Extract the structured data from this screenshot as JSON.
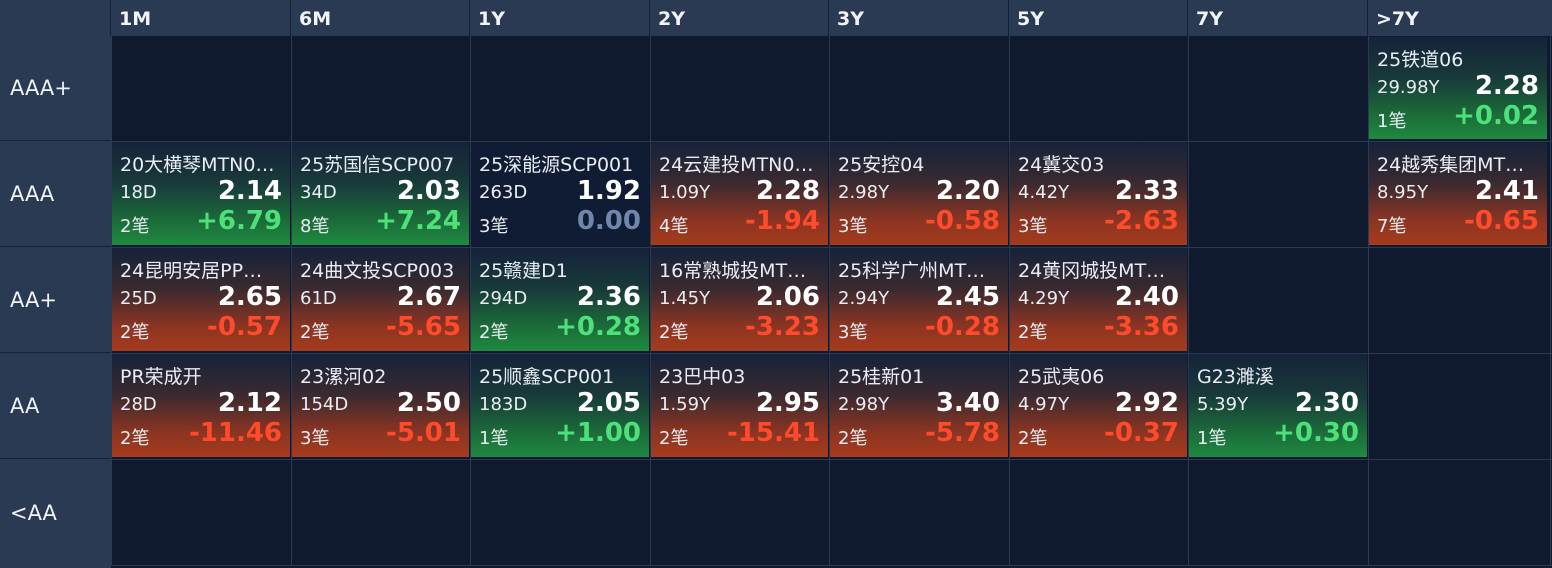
{
  "columns": [
    "1M",
    "6M",
    "1Y",
    "2Y",
    "3Y",
    "5Y",
    "7Y",
    ">7Y"
  ],
  "rows": [
    "AAA+",
    "AAA",
    "AA+",
    "AA",
    "<AA"
  ],
  "cells": {
    "aaa_plus_gt7y": {
      "name": "25铁道06",
      "tenor": "29.98Y",
      "yield": "2.28",
      "count": "1笔",
      "change": "+0.02",
      "trend": "up"
    },
    "aaa_1m": {
      "name": "20大横琴MTN0…",
      "tenor": "18D",
      "yield": "2.14",
      "count": "2笔",
      "change": "+6.79",
      "trend": "up"
    },
    "aaa_6m": {
      "name": "25苏国信SCP007",
      "tenor": "34D",
      "yield": "2.03",
      "count": "8笔",
      "change": "+7.24",
      "trend": "up"
    },
    "aaa_1y": {
      "name": "25深能源SCP001",
      "tenor": "263D",
      "yield": "1.92",
      "count": "3笔",
      "change": "0.00",
      "trend": "flat"
    },
    "aaa_2y": {
      "name": "24云建投MTN0…",
      "tenor": "1.09Y",
      "yield": "2.28",
      "count": "4笔",
      "change": "-1.94",
      "trend": "down"
    },
    "aaa_3y": {
      "name": "25安控04",
      "tenor": "2.98Y",
      "yield": "2.20",
      "count": "3笔",
      "change": "-0.58",
      "trend": "down"
    },
    "aaa_5y": {
      "name": "24冀交03",
      "tenor": "4.42Y",
      "yield": "2.33",
      "count": "3笔",
      "change": "-2.63",
      "trend": "down"
    },
    "aaa_gt7y": {
      "name": "24越秀集团MT…",
      "tenor": "8.95Y",
      "yield": "2.41",
      "count": "7笔",
      "change": "-0.65",
      "trend": "down"
    },
    "aap_1m": {
      "name": "24昆明安居PP…",
      "tenor": "25D",
      "yield": "2.65",
      "count": "2笔",
      "change": "-0.57",
      "trend": "down"
    },
    "aap_6m": {
      "name": "24曲文投SCP003",
      "tenor": "61D",
      "yield": "2.67",
      "count": "2笔",
      "change": "-5.65",
      "trend": "down"
    },
    "aap_1y": {
      "name": "25赣建D1",
      "tenor": "294D",
      "yield": "2.36",
      "count": "2笔",
      "change": "+0.28",
      "trend": "up"
    },
    "aap_2y": {
      "name": "16常熟城投MT…",
      "tenor": "1.45Y",
      "yield": "2.06",
      "count": "2笔",
      "change": "-3.23",
      "trend": "down"
    },
    "aap_3y": {
      "name": "25科学广州MT…",
      "tenor": "2.94Y",
      "yield": "2.45",
      "count": "3笔",
      "change": "-0.28",
      "trend": "down"
    },
    "aap_5y": {
      "name": "24黄冈城投MT…",
      "tenor": "4.29Y",
      "yield": "2.40",
      "count": "2笔",
      "change": "-3.36",
      "trend": "down"
    },
    "aa_1m": {
      "name": "PR荣成开",
      "tenor": "28D",
      "yield": "2.12",
      "count": "2笔",
      "change": "-11.46",
      "trend": "down"
    },
    "aa_6m": {
      "name": "23漯河02",
      "tenor": "154D",
      "yield": "2.50",
      "count": "3笔",
      "change": "-5.01",
      "trend": "down"
    },
    "aa_1y": {
      "name": "25顺鑫SCP001",
      "tenor": "183D",
      "yield": "2.05",
      "count": "1笔",
      "change": "+1.00",
      "trend": "up"
    },
    "aa_2y": {
      "name": "23巴中03",
      "tenor": "1.59Y",
      "yield": "2.95",
      "count": "2笔",
      "change": "-15.41",
      "trend": "down"
    },
    "aa_3y": {
      "name": "25桂新01",
      "tenor": "2.98Y",
      "yield": "3.40",
      "count": "2笔",
      "change": "-5.78",
      "trend": "down"
    },
    "aa_5y": {
      "name": "25武夷06",
      "tenor": "4.97Y",
      "yield": "2.92",
      "count": "2笔",
      "change": "-0.37",
      "trend": "down"
    },
    "aa_7y": {
      "name": "G23濉溪",
      "tenor": "5.39Y",
      "yield": "2.30",
      "count": "1笔",
      "change": "+0.30",
      "trend": "up"
    }
  },
  "colors": {
    "up": "#4ee07a",
    "down": "#ff4b2b",
    "flat": "#6f87ad",
    "header": "#2a3a52",
    "background": "#0f1a2e"
  }
}
